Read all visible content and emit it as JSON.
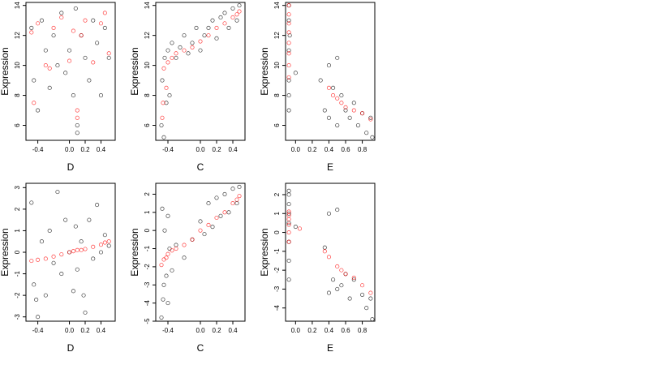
{
  "chart_data": [
    {
      "type": "scatter",
      "x_label": "D",
      "y_label": "Expression",
      "xlim": [
        -0.55,
        0.58
      ],
      "ylim": [
        5,
        14.2
      ],
      "xticks": [
        -0.4,
        {
          "value": 0,
          "label": "0.0"
        },
        0.2,
        0.4
      ],
      "yticks": [
        6,
        8,
        10,
        12,
        14
      ],
      "series": [
        {
          "color": "#000000",
          "x": [
            -0.48,
            -0.45,
            -0.4,
            -0.35,
            -0.3,
            -0.25,
            -0.2,
            -0.15,
            -0.1,
            -0.05,
            0.0,
            0.05,
            0.08,
            0.1,
            0.1,
            0.15,
            0.2,
            0.25,
            0.3,
            0.35,
            0.4,
            0.45,
            0.5
          ],
          "values": [
            12.5,
            9,
            7,
            13,
            11,
            8.5,
            12,
            10,
            13.5,
            9.5,
            11,
            8,
            13.8,
            6,
            5.5,
            12,
            10.5,
            9,
            13,
            11.5,
            8,
            12.5,
            10.5
          ]
        },
        {
          "color": "#ff0000",
          "x": [
            -0.48,
            -0.4,
            -0.3,
            -0.2,
            -0.1,
            0,
            0.1,
            0.1,
            0.15,
            0.2,
            0.3,
            0.4,
            0.45,
            0.5,
            -0.45,
            -0.25,
            0.05
          ],
          "values": [
            12.2,
            12.8,
            10,
            12.5,
            13.2,
            10.3,
            7,
            6.5,
            12,
            13,
            10.2,
            12.8,
            13.5,
            10.8,
            7.5,
            9.8,
            12.3
          ]
        }
      ]
    },
    {
      "type": "scatter",
      "x_label": "C",
      "y_label": "Expression",
      "xlim": [
        -0.55,
        0.55
      ],
      "ylim": [
        5,
        14.2
      ],
      "xticks": [
        -0.4,
        {
          "value": 0,
          "label": "0.0"
        },
        0.2,
        0.4
      ],
      "yticks": [
        6,
        8,
        10,
        12,
        14
      ],
      "series": [
        {
          "color": "#000000",
          "x": [
            -0.48,
            -0.47,
            -0.45,
            -0.44,
            -0.42,
            -0.4,
            -0.38,
            -0.35,
            -0.3,
            -0.25,
            -0.2,
            -0.15,
            -0.1,
            -0.05,
            0.0,
            0.05,
            0.1,
            0.15,
            0.2,
            0.25,
            0.3,
            0.35,
            0.4,
            0.45,
            0.48
          ],
          "values": [
            6,
            9,
            5.2,
            10.5,
            7.5,
            11,
            8,
            11.5,
            10.5,
            11.2,
            12,
            10.8,
            11.5,
            12.5,
            11,
            12,
            12.5,
            13,
            11.8,
            13.2,
            13.5,
            12.5,
            13.8,
            13,
            14
          ]
        },
        {
          "color": "#ff0000",
          "x": [
            -0.47,
            -0.45,
            -0.42,
            -0.4,
            -0.35,
            -0.3,
            -0.2,
            -0.1,
            0,
            0.1,
            0.2,
            0.3,
            0.4,
            0.45,
            0.48,
            -0.46
          ],
          "values": [
            6.5,
            9.8,
            8.5,
            10.2,
            10.5,
            10.8,
            11,
            11.2,
            11.6,
            12,
            12.5,
            12.8,
            13.2,
            13.4,
            13.6,
            7.5
          ]
        }
      ]
    },
    {
      "type": "scatter",
      "x_label": "E",
      "y_label": "Expression",
      "xlim": [
        -0.12,
        0.95
      ],
      "ylim": [
        5,
        14.2
      ],
      "xticks": [
        {
          "value": 0,
          "label": "0.0"
        },
        0.2,
        0.4,
        0.6,
        0.8
      ],
      "yticks": [
        6,
        8,
        10,
        12,
        14
      ],
      "series": [
        {
          "color": "#000000",
          "x": [
            -0.08,
            -0.08,
            -0.08,
            -0.08,
            -0.08,
            -0.08,
            -0.07,
            0.0,
            0.3,
            0.35,
            0.4,
            0.4,
            0.45,
            0.5,
            0.5,
            0.55,
            0.6,
            0.65,
            0.7,
            0.75,
            0.8,
            0.85,
            0.9,
            0.92
          ],
          "values": [
            7,
            8,
            9,
            11,
            13,
            14,
            12,
            9.5,
            9,
            7,
            10,
            6.5,
            8.5,
            10.5,
            6,
            8,
            7,
            6.5,
            7.5,
            6,
            6.8,
            5.5,
            6.5,
            5.2
          ]
        },
        {
          "color": "#ff0000",
          "x": [
            -0.08,
            -0.08,
            -0.08,
            -0.08,
            -0.08,
            -0.08,
            -0.08,
            -0.08,
            0.4,
            0.45,
            0.5,
            0.55,
            0.6,
            0.7,
            0.8,
            0.9
          ],
          "values": [
            9.2,
            10,
            10.8,
            11.5,
            12.2,
            12.8,
            13.4,
            14,
            8.5,
            8,
            7.8,
            7.5,
            7.2,
            7,
            6.8,
            6.4
          ]
        }
      ]
    },
    {
      "type": "scatter",
      "x_label": "D",
      "y_label": "Expression",
      "xlim": [
        -0.55,
        0.58
      ],
      "ylim": [
        -3.2,
        3.2
      ],
      "xticks": [
        -0.4,
        {
          "value": 0,
          "label": "0.0"
        },
        0.2,
        0.4
      ],
      "yticks": [
        -3,
        -2,
        -1,
        0,
        1,
        2,
        3
      ],
      "series": [
        {
          "color": "#000000",
          "x": [
            -0.48,
            -0.45,
            -0.4,
            -0.35,
            -0.3,
            -0.25,
            -0.2,
            -0.15,
            -0.1,
            -0.05,
            0,
            0.05,
            0.08,
            0.1,
            0.15,
            0.2,
            0.25,
            0.3,
            0.35,
            0.4,
            0.45,
            0.5,
            -0.42,
            0.18
          ],
          "values": [
            2.3,
            -1.5,
            -3,
            0.5,
            -2,
            1,
            -0.5,
            2.8,
            -1,
            1.5,
            0,
            -1.8,
            1.2,
            -0.8,
            0.5,
            -2.8,
            1.5,
            -0.3,
            2.2,
            0,
            0.8,
            0.3,
            -2.2,
            -2
          ]
        },
        {
          "color": "#ff0000",
          "x": [
            -0.48,
            -0.4,
            -0.3,
            -0.2,
            -0.1,
            0,
            0.05,
            0.1,
            0.15,
            0.2,
            0.3,
            0.4,
            0.45,
            0.5
          ],
          "values": [
            -0.4,
            -0.35,
            -0.3,
            -0.2,
            -0.1,
            0,
            0.05,
            0.1,
            0.1,
            0.15,
            0.25,
            0.35,
            0.45,
            0.5
          ]
        }
      ]
    },
    {
      "type": "scatter",
      "x_label": "C",
      "y_label": "Expression",
      "xlim": [
        -0.55,
        0.55
      ],
      "ylim": [
        -5,
        2.6
      ],
      "xticks": [
        -0.4,
        {
          "value": 0,
          "label": "0.0"
        },
        0.2,
        0.4
      ],
      "yticks": [
        -5,
        -4,
        -3,
        -2,
        -1,
        0,
        1,
        2
      ],
      "series": [
        {
          "color": "#000000",
          "x": [
            -0.48,
            -0.47,
            -0.45,
            -0.44,
            -0.42,
            -0.4,
            -0.38,
            -0.35,
            -0.3,
            -0.2,
            -0.1,
            0,
            0.05,
            0.1,
            0.15,
            0.2,
            0.25,
            0.3,
            0.35,
            0.4,
            0.45,
            0.48,
            -0.46,
            -0.4
          ],
          "values": [
            -4.8,
            1.2,
            -3,
            0,
            -2.5,
            -4,
            -1,
            -2.2,
            -0.8,
            -1.5,
            -0.5,
            0.5,
            -0.2,
            1.5,
            0.2,
            1.8,
            0.8,
            2,
            1,
            2.3,
            1.5,
            2.4,
            -3.8,
            0.8
          ]
        },
        {
          "color": "#ff0000",
          "x": [
            -0.48,
            -0.45,
            -0.42,
            -0.4,
            -0.35,
            -0.3,
            -0.2,
            -0.1,
            0,
            0.1,
            0.2,
            0.3,
            0.4,
            0.45,
            0.48
          ],
          "values": [
            -1.9,
            -1.6,
            -1.5,
            -1.3,
            -1.1,
            -1,
            -0.8,
            -0.5,
            0,
            0.3,
            0.7,
            1,
            1.5,
            1.7,
            1.9
          ]
        }
      ]
    },
    {
      "type": "scatter",
      "x_label": "E",
      "y_label": "Expression",
      "xlim": [
        -0.12,
        0.95
      ],
      "ylim": [
        -4.7,
        2.6
      ],
      "xticks": [
        {
          "value": 0,
          "label": "0.0"
        },
        0.2,
        0.4,
        0.6,
        0.8
      ],
      "yticks": [
        -4,
        -3,
        -2,
        -1,
        0,
        1,
        2
      ],
      "series": [
        {
          "color": "#000000",
          "x": [
            -0.08,
            -0.08,
            -0.08,
            -0.08,
            -0.08,
            -0.08,
            -0.08,
            -0.08,
            0,
            0.35,
            0.4,
            0.4,
            0.45,
            0.5,
            0.5,
            0.55,
            0.6,
            0.65,
            0.7,
            0.8,
            0.85,
            0.9,
            0.92
          ],
          "values": [
            -2.5,
            -1.5,
            -0.5,
            0.5,
            1,
            1.5,
            2,
            2.2,
            0.3,
            -0.8,
            1,
            -3.2,
            -2.5,
            1.2,
            -3,
            -2.8,
            -2.2,
            -3.5,
            -2.5,
            -3.3,
            -4,
            -3.5,
            -4.6
          ]
        },
        {
          "color": "#ff0000",
          "x": [
            -0.08,
            -0.08,
            -0.08,
            -0.08,
            -0.08,
            -0.08,
            0.05,
            0.35,
            0.4,
            0.5,
            0.55,
            0.6,
            0.7,
            0.8,
            0.9
          ],
          "values": [
            -0.5,
            0,
            0.4,
            0.7,
            0.9,
            1.1,
            0.2,
            -1,
            -1.3,
            -1.8,
            -2,
            -2.2,
            -2.4,
            -2.8,
            -3.2
          ]
        }
      ]
    }
  ]
}
